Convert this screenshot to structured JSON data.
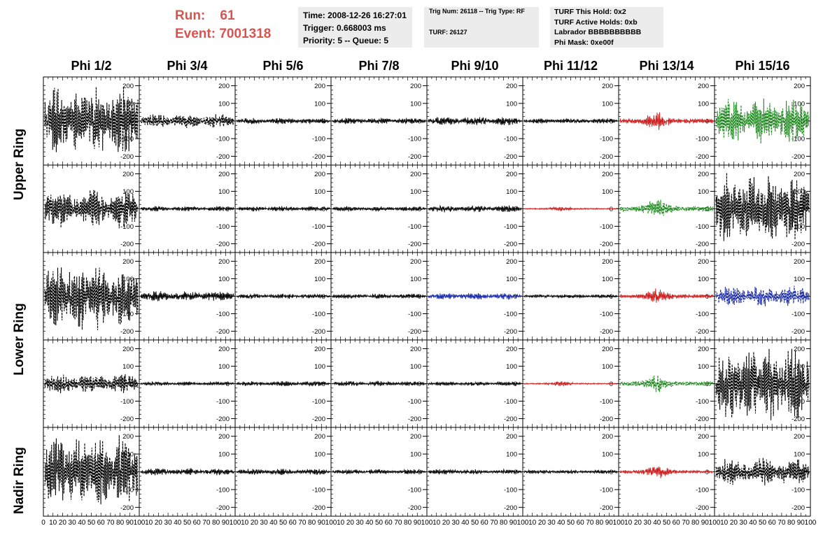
{
  "header": {
    "run_label": "Run:",
    "run_value": "61",
    "event_label": "Event:",
    "event_value": "7001318",
    "time": "Time: 2008-12-26 16:27:01",
    "trigger": "Trigger: 0.668003 ms",
    "priority": "Priority: 5 -- Queue: 5",
    "trig_num": "Trig Num: 26118 -- Trig Type: RF",
    "turf": "TURF: 26127",
    "turf_this_hold": "TURF This Hold: 0x2",
    "turf_active_holds": "TURF Active Holds: 0xb",
    "labrador": "Labrador BBBBBBBBBB",
    "phi_mask": "Phi Mask: 0xe00f"
  },
  "columns": [
    "Phi 1/2",
    "Phi 3/4",
    "Phi 5/6",
    "Phi 7/8",
    "Phi 9/10",
    "Phi 11/12",
    "Phi 13/14",
    "Phi 15/16"
  ],
  "ring_labels": {
    "upper": "Upper Ring",
    "lower": "Lower Ring",
    "nadir": "Nadir Ring"
  },
  "chart_data": {
    "type": "line",
    "ylim": [
      -250,
      250
    ],
    "xlim": [
      0,
      100
    ],
    "y_ticks": [
      "200",
      "100",
      "0",
      "-100",
      "-200"
    ],
    "x_tick_labels_first": [
      "0",
      "10",
      "20",
      "30",
      "40",
      "50",
      "60",
      "70",
      "80",
      "90",
      "100"
    ],
    "x_tick_labels_inner": [
      "10",
      "20",
      "30",
      "40",
      "50",
      "60",
      "70",
      "80",
      "90",
      "100"
    ],
    "colors": {
      "black": "#000000",
      "red": "#cc2020",
      "green": "#1f8a1f",
      "blue": "#1a2aa8"
    },
    "panels": [
      [
        {
          "col": 0,
          "color": "black",
          "amplitude": 200,
          "style": "dashed"
        },
        {
          "col": 1,
          "color": "black",
          "amplitude": 40,
          "style": "dashed"
        },
        {
          "col": 2,
          "color": "black",
          "amplitude": 18,
          "style": "solid"
        },
        {
          "col": 3,
          "color": "black",
          "amplitude": 18,
          "style": "solid"
        },
        {
          "col": 4,
          "color": "black",
          "amplitude": 25,
          "style": "solid"
        },
        {
          "col": 5,
          "color": "black",
          "amplitude": 15,
          "style": "solid"
        },
        {
          "col": 6,
          "color": "red",
          "amplitude": 55,
          "style": "solid"
        },
        {
          "col": 7,
          "color": "green",
          "amplitude": 130,
          "style": "dashed"
        }
      ],
      [
        {
          "col": 0,
          "color": "black",
          "amplitude": 110,
          "style": "dashed"
        },
        {
          "col": 1,
          "color": "black",
          "amplitude": 15,
          "style": "solid"
        },
        {
          "col": 2,
          "color": "black",
          "amplitude": 15,
          "style": "solid"
        },
        {
          "col": 3,
          "color": "black",
          "amplitude": 15,
          "style": "solid"
        },
        {
          "col": 4,
          "color": "black",
          "amplitude": 20,
          "style": "solid"
        },
        {
          "col": 5,
          "color": "red",
          "amplitude": 15,
          "style": "solid"
        },
        {
          "col": 6,
          "color": "green",
          "amplitude": 65,
          "style": "dashed"
        },
        {
          "col": 7,
          "color": "black",
          "amplitude": 210,
          "style": "dashed"
        }
      ],
      [
        {
          "col": 0,
          "color": "black",
          "amplitude": 200,
          "style": "dashed"
        },
        {
          "col": 1,
          "color": "black",
          "amplitude": 30,
          "style": "solid"
        },
        {
          "col": 2,
          "color": "black",
          "amplitude": 15,
          "style": "solid"
        },
        {
          "col": 3,
          "color": "black",
          "amplitude": 15,
          "style": "solid"
        },
        {
          "col": 4,
          "color": "blue",
          "amplitude": 20,
          "style": "solid"
        },
        {
          "col": 5,
          "color": "black",
          "amplitude": 12,
          "style": "solid"
        },
        {
          "col": 6,
          "color": "red",
          "amplitude": 45,
          "style": "solid"
        },
        {
          "col": 7,
          "color": "blue",
          "amplitude": 60,
          "style": "dashed"
        }
      ],
      [
        {
          "col": 0,
          "color": "black",
          "amplitude": 55,
          "style": "dashed"
        },
        {
          "col": 1,
          "color": "black",
          "amplitude": 12,
          "style": "solid"
        },
        {
          "col": 2,
          "color": "black",
          "amplitude": 15,
          "style": "solid"
        },
        {
          "col": 3,
          "color": "black",
          "amplitude": 15,
          "style": "solid"
        },
        {
          "col": 4,
          "color": "black",
          "amplitude": 12,
          "style": "solid"
        },
        {
          "col": 5,
          "color": "red",
          "amplitude": 15,
          "style": "solid"
        },
        {
          "col": 6,
          "color": "green",
          "amplitude": 50,
          "style": "dashed"
        },
        {
          "col": 7,
          "color": "black",
          "amplitude": 210,
          "style": "dashed"
        }
      ],
      [
        {
          "col": 0,
          "color": "black",
          "amplitude": 210,
          "style": "dashed"
        },
        {
          "col": 1,
          "color": "black",
          "amplitude": 20,
          "style": "solid"
        },
        {
          "col": 2,
          "color": "black",
          "amplitude": 18,
          "style": "solid"
        },
        {
          "col": 3,
          "color": "black",
          "amplitude": 15,
          "style": "solid"
        },
        {
          "col": 4,
          "color": "black",
          "amplitude": 15,
          "style": "solid"
        },
        {
          "col": 5,
          "color": "black",
          "amplitude": 12,
          "style": "solid"
        },
        {
          "col": 6,
          "color": "red",
          "amplitude": 40,
          "style": "solid"
        },
        {
          "col": 7,
          "color": "black",
          "amplitude": 80,
          "style": "dashed"
        }
      ]
    ]
  }
}
